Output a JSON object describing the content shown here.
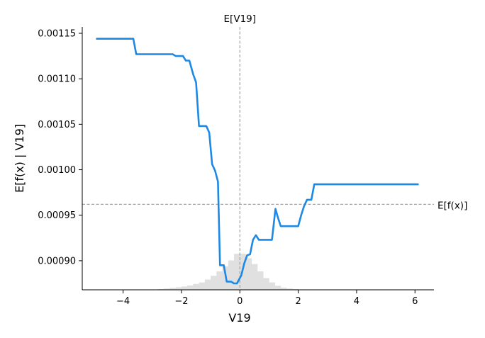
{
  "chart_data": {
    "type": "line",
    "xlabel": "V19",
    "ylabel": "E[f(x) | V19]",
    "xlim": [
      -5.4,
      6.65
    ],
    "ylim": [
      0.000868,
      0.001157
    ],
    "x_ticks": [
      -4,
      -2,
      0,
      2,
      4,
      6
    ],
    "x_tick_labels": [
      "−4",
      "−2",
      "0",
      "2",
      "4",
      "6"
    ],
    "y_ticks": [
      0.0009,
      0.00095,
      0.001,
      0.00105,
      0.0011,
      0.00115
    ],
    "y_tick_labels": [
      "0.00090",
      "0.00095",
      "0.00100",
      "0.00105",
      "0.00110",
      "0.00115"
    ],
    "grid": false,
    "colors": {
      "line": "#1e88e5",
      "reference": "#999999",
      "histogram": "#e0e0e0",
      "axis": "#000000"
    },
    "reference_lines": {
      "vertical": {
        "x": 0.0,
        "label": "E[V19]"
      },
      "horizontal": {
        "y": 0.000962,
        "label": "E[f(x)]"
      }
    },
    "series": [
      {
        "x": [
          -4.9,
          -3.65,
          -3.55,
          -2.3,
          -2.2,
          -1.95,
          -1.85,
          -1.73,
          -1.6,
          -1.5,
          -1.4,
          -1.15,
          -1.05,
          -0.95,
          -0.85,
          -0.75,
          -0.68,
          -0.55,
          -0.45,
          -0.3,
          -0.2,
          -0.1,
          0.05,
          0.15,
          0.25,
          0.35,
          0.45,
          0.55,
          0.65,
          0.75,
          0.85,
          1.0,
          1.1,
          1.22,
          1.3,
          1.4,
          1.55,
          2.0,
          2.1,
          2.2,
          2.3,
          2.45,
          2.55,
          6.1
        ],
        "y": [
          0.001144,
          0.001144,
          0.001127,
          0.001127,
          0.001125,
          0.001125,
          0.00112,
          0.00112,
          0.001105,
          0.001096,
          0.001048,
          0.001048,
          0.001041,
          0.001006,
          0.000999,
          0.000987,
          0.000895,
          0.000895,
          0.000877,
          0.000877,
          0.000875,
          0.000875,
          0.000884,
          0.000897,
          0.000906,
          0.000907,
          0.000923,
          0.000928,
          0.000923,
          0.000923,
          0.000923,
          0.000923,
          0.000923,
          0.000957,
          0.000948,
          0.000938,
          0.000938,
          0.000938,
          0.00095,
          0.00096,
          0.000967,
          0.000967,
          0.000984,
          0.000984
        ]
      }
    ],
    "histogram": {
      "bin_edges": [
        -3.0,
        -2.8,
        -2.6,
        -2.4,
        -2.2,
        -2.0,
        -1.8,
        -1.6,
        -1.4,
        -1.2,
        -1.0,
        -0.8,
        -0.6,
        -0.4,
        -0.2,
        0.0,
        0.2,
        0.4,
        0.6,
        0.8,
        1.0,
        1.2,
        1.4,
        1.6,
        1.8,
        2.0,
        2.2
      ],
      "relative_heights": [
        0.01,
        0.02,
        0.035,
        0.05,
        0.07,
        0.09,
        0.12,
        0.16,
        0.2,
        0.28,
        0.38,
        0.5,
        0.64,
        0.8,
        0.98,
        0.98,
        0.86,
        0.7,
        0.5,
        0.32,
        0.2,
        0.11,
        0.06,
        0.035,
        0.02,
        0.01
      ],
      "max_fraction_of_axis": 0.14
    }
  }
}
